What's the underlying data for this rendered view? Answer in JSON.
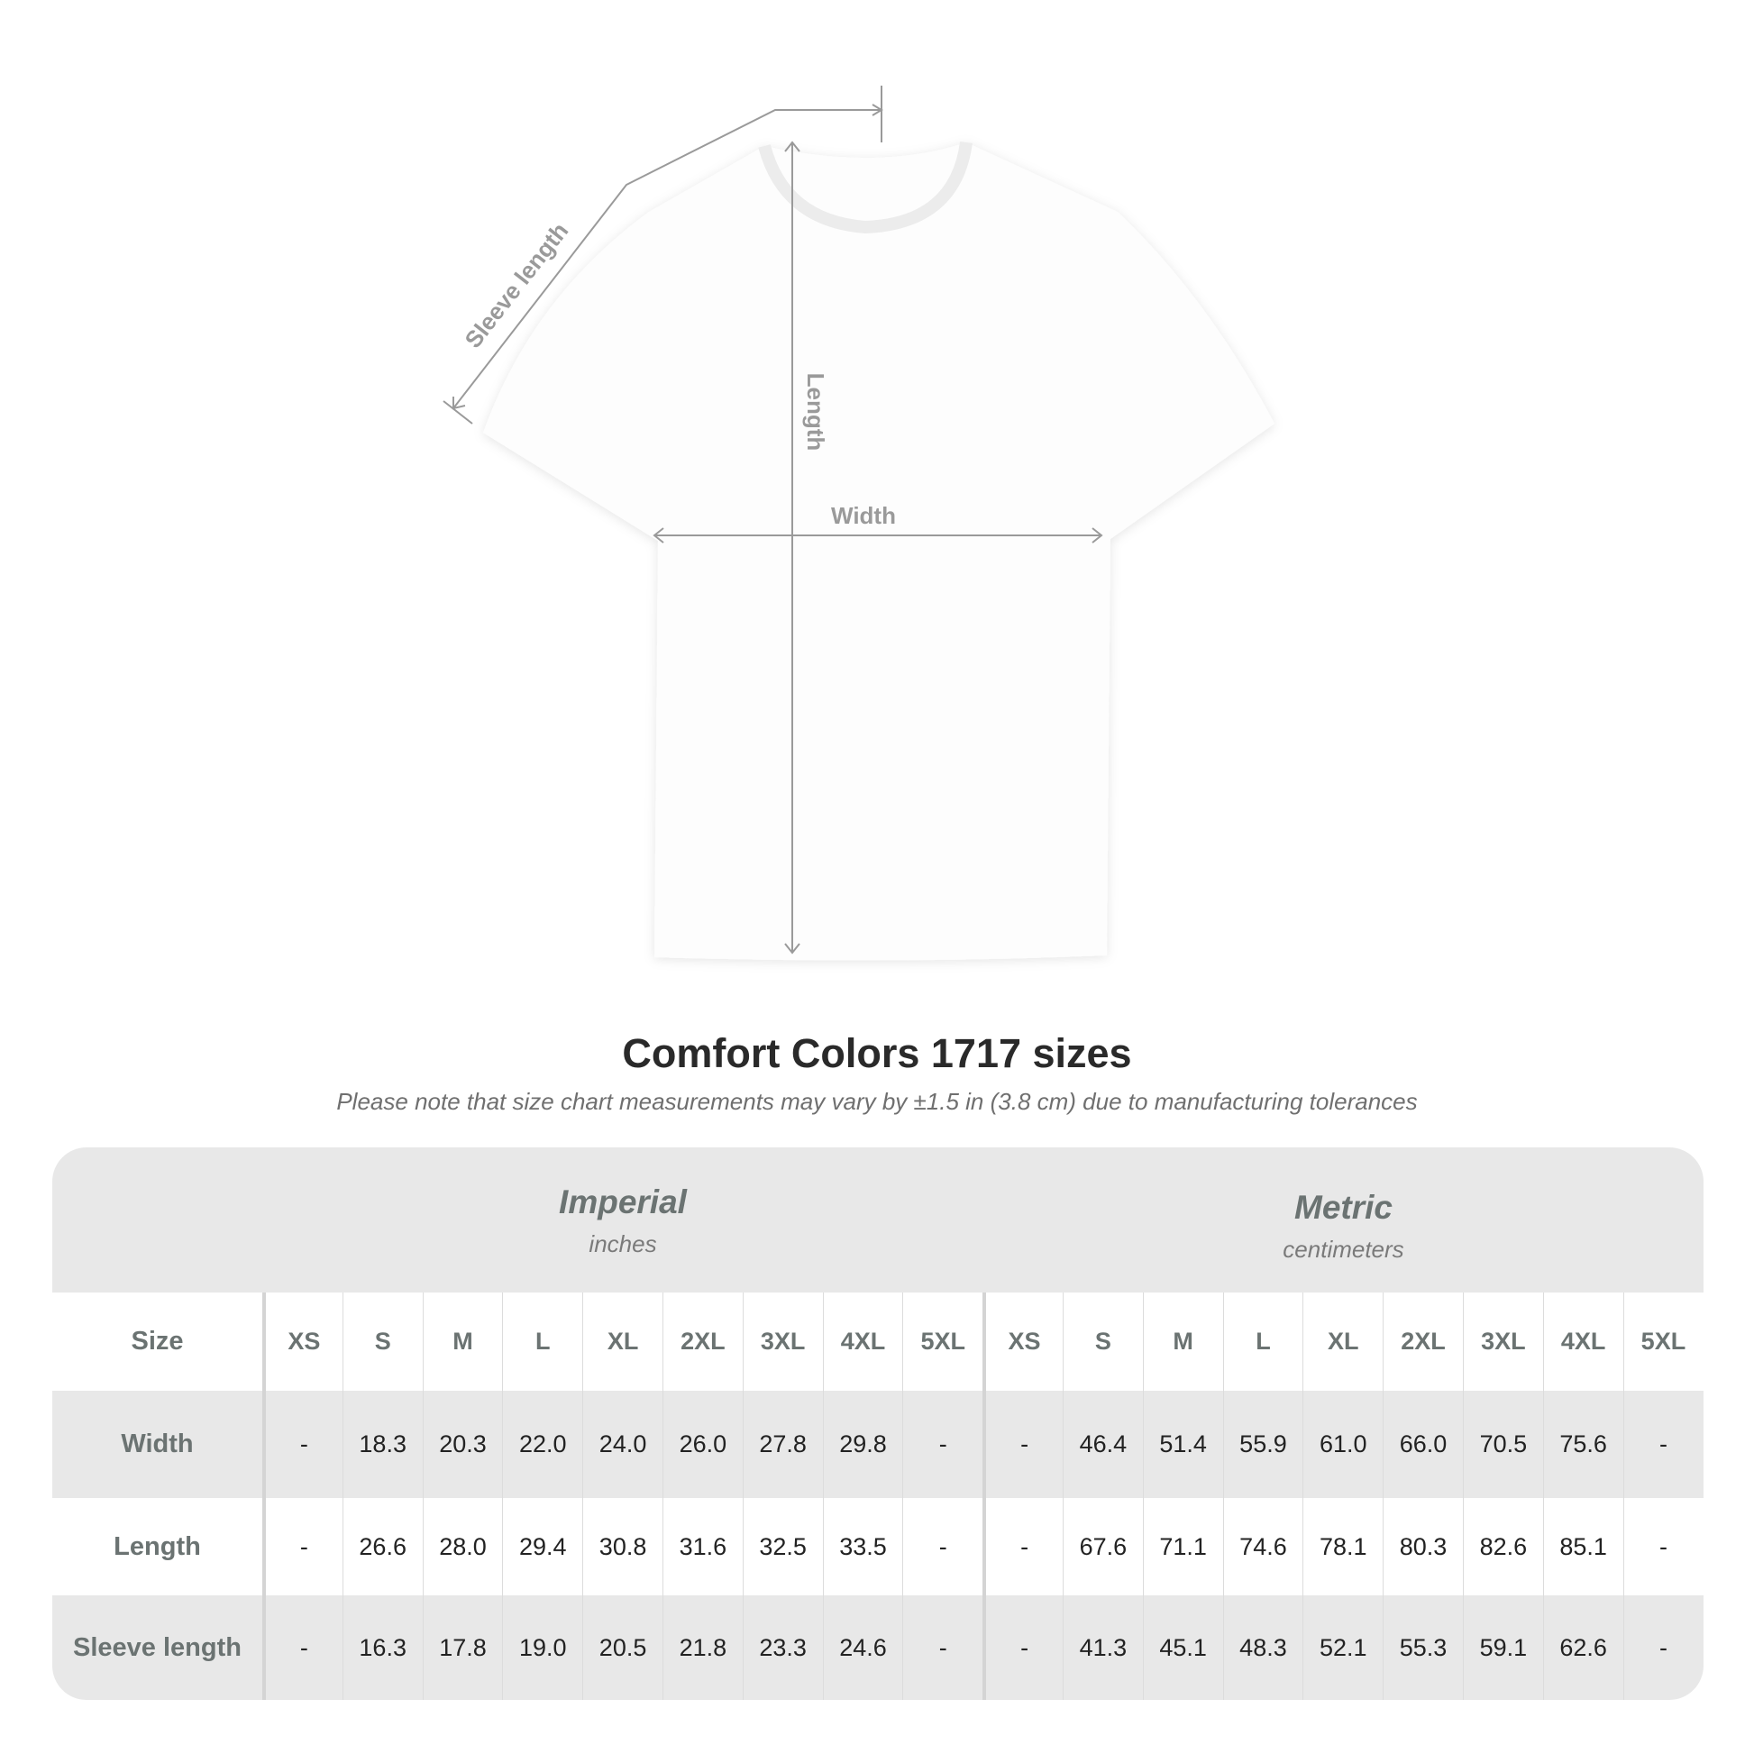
{
  "diagram": {
    "labels": {
      "sleeve": "Sleeve length",
      "length": "Length",
      "width": "Width"
    }
  },
  "title": "Comfort Colors 1717 sizes",
  "subtitle": "Please note that size chart measurements may vary by ±1.5 in (3.8 cm) due to manufacturing tolerances",
  "table": {
    "imperial": {
      "heading": "Imperial",
      "unit": "inches"
    },
    "metric": {
      "heading": "Metric",
      "unit": "centimeters"
    },
    "size_label": "Size",
    "sizes": [
      "XS",
      "S",
      "M",
      "L",
      "XL",
      "2XL",
      "3XL",
      "4XL",
      "5XL"
    ],
    "rows": [
      {
        "label": "Width",
        "imperial": [
          "-",
          "18.3",
          "20.3",
          "22.0",
          "24.0",
          "26.0",
          "27.8",
          "29.8",
          "-"
        ],
        "metric": [
          "-",
          "46.4",
          "51.4",
          "55.9",
          "61.0",
          "66.0",
          "70.5",
          "75.6",
          "-"
        ]
      },
      {
        "label": "Length",
        "imperial": [
          "-",
          "26.6",
          "28.0",
          "29.4",
          "30.8",
          "31.6",
          "32.5",
          "33.5",
          "-"
        ],
        "metric": [
          "-",
          "67.6",
          "71.1",
          "74.6",
          "78.1",
          "80.3",
          "82.6",
          "85.1",
          "-"
        ]
      },
      {
        "label": "Sleeve length",
        "imperial": [
          "-",
          "16.3",
          "17.8",
          "19.0",
          "20.5",
          "21.8",
          "23.3",
          "24.6",
          "-"
        ],
        "metric": [
          "-",
          "41.3",
          "45.1",
          "48.3",
          "52.1",
          "55.3",
          "59.1",
          "62.6",
          "-"
        ]
      }
    ]
  },
  "colors": {
    "band": "#e8e8e8",
    "heading": "#6b7372",
    "measure_line": "#9a9a9a"
  }
}
